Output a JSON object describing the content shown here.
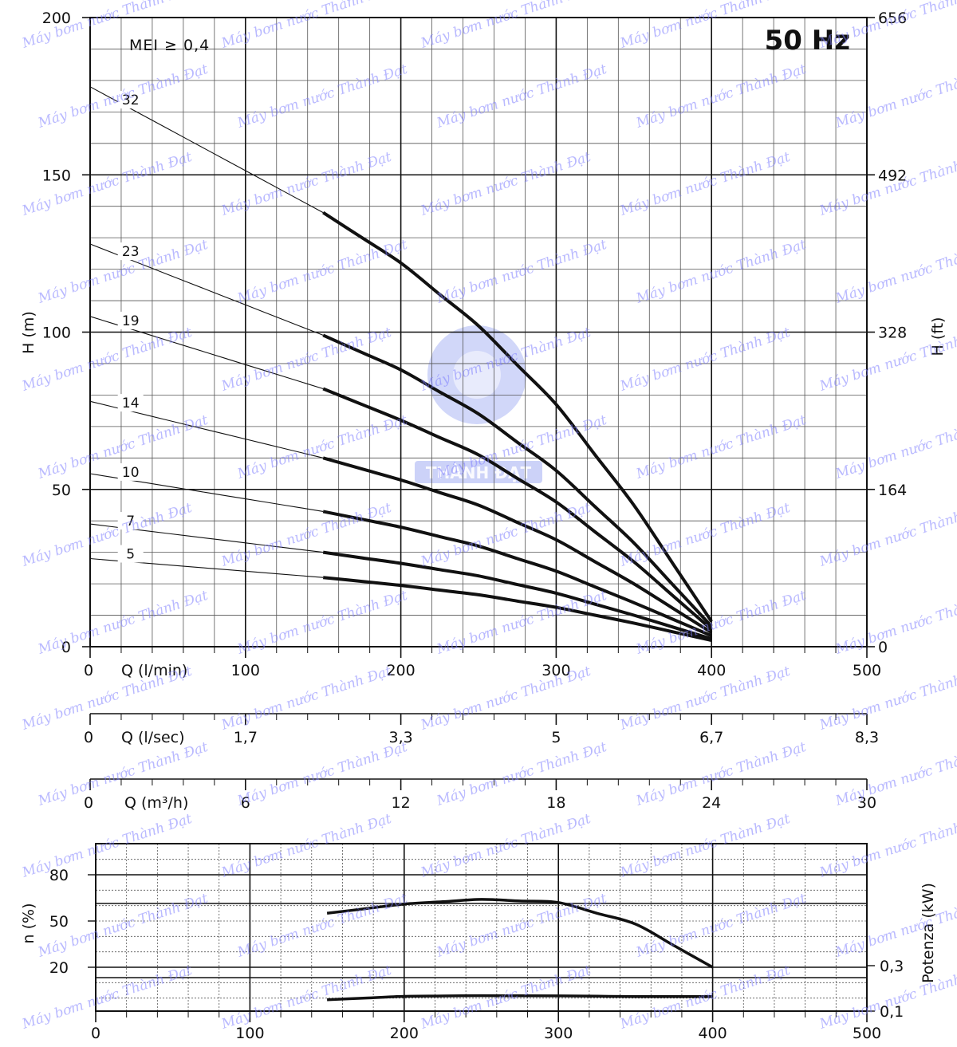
{
  "chart_data": [
    {
      "type": "line",
      "panel": "head",
      "frequency_label": "50 Hz",
      "annotation": "MEI ≥ 0,4",
      "ylabel": "H (m)",
      "ylabel_right": "H (ft)",
      "ylim": [
        0,
        200
      ],
      "yticks": [
        "0",
        "50",
        "100",
        "150",
        "200"
      ],
      "yticks_right": [
        "0",
        "164",
        "328",
        "492",
        "656"
      ],
      "xlim": [
        0,
        500
      ],
      "grid": true,
      "x_axes": [
        {
          "label": "Q (l/min)",
          "ticks": [
            "0",
            "100",
            "200",
            "300",
            "400",
            "500"
          ]
        },
        {
          "label": "Q (l/sec)",
          "ticks": [
            "0",
            "1,7",
            "3,3",
            "5",
            "6,7",
            "8,3"
          ]
        },
        {
          "label": "Q (m³/h)",
          "ticks": [
            "0",
            "6",
            "12",
            "18",
            "24",
            "30"
          ]
        }
      ],
      "series": [
        {
          "name": "32",
          "x": [
            0,
            150,
            200,
            250,
            300,
            350,
            400
          ],
          "y": [
            178,
            138,
            122,
            102,
            77,
            45,
            8
          ]
        },
        {
          "name": "23",
          "x": [
            0,
            150,
            200,
            250,
            300,
            350,
            400
          ],
          "y": [
            128,
            99,
            88,
            74,
            56,
            33,
            6.5
          ]
        },
        {
          "name": "19",
          "x": [
            0,
            150,
            200,
            250,
            300,
            350,
            400
          ],
          "y": [
            105,
            82,
            72,
            61,
            46,
            27,
            5.5
          ]
        },
        {
          "name": "14",
          "x": [
            0,
            150,
            200,
            250,
            300,
            350,
            400
          ],
          "y": [
            78,
            60,
            53,
            45,
            34,
            20,
            4.5
          ]
        },
        {
          "name": "10",
          "x": [
            0,
            150,
            200,
            250,
            300,
            350,
            400
          ],
          "y": [
            55,
            43,
            38,
            32,
            24,
            14,
            3.5
          ]
        },
        {
          "name": "7",
          "x": [
            0,
            150,
            200,
            250,
            300,
            350,
            400
          ],
          "y": [
            39,
            30,
            26.5,
            22.5,
            17,
            10,
            2.5
          ]
        },
        {
          "name": "5",
          "x": [
            0,
            150,
            200,
            250,
            300,
            350,
            400
          ],
          "y": [
            28,
            22,
            19.5,
            16.5,
            12.5,
            7.5,
            2
          ]
        }
      ]
    },
    {
      "type": "line",
      "panel": "efficiency-power",
      "ylabel": "n (%)",
      "ylabel_right": "Potenza (kW)",
      "yticks": [
        "20",
        "50",
        "80"
      ],
      "yticks_right": [
        "0,1",
        "0,3"
      ],
      "xlim": [
        0,
        500
      ],
      "xticks": [
        "0",
        "100",
        "200",
        "300",
        "400",
        "500"
      ],
      "grid": true,
      "series": [
        {
          "axis": "left",
          "x": [
            150,
            200,
            250,
            300,
            350,
            400
          ],
          "y": [
            55,
            61,
            64,
            62,
            48,
            20
          ]
        },
        {
          "axis": "right",
          "x": [
            150,
            200,
            250,
            300,
            350,
            400
          ],
          "y": [
            0.15,
            0.165,
            0.168,
            0.167,
            0.164,
            0.164
          ]
        }
      ]
    }
  ],
  "watermark": {
    "text": "Máy bơm nước Thành Đạt",
    "logo_text": "THÀNH ĐẠT",
    "color": "#8080ff"
  }
}
